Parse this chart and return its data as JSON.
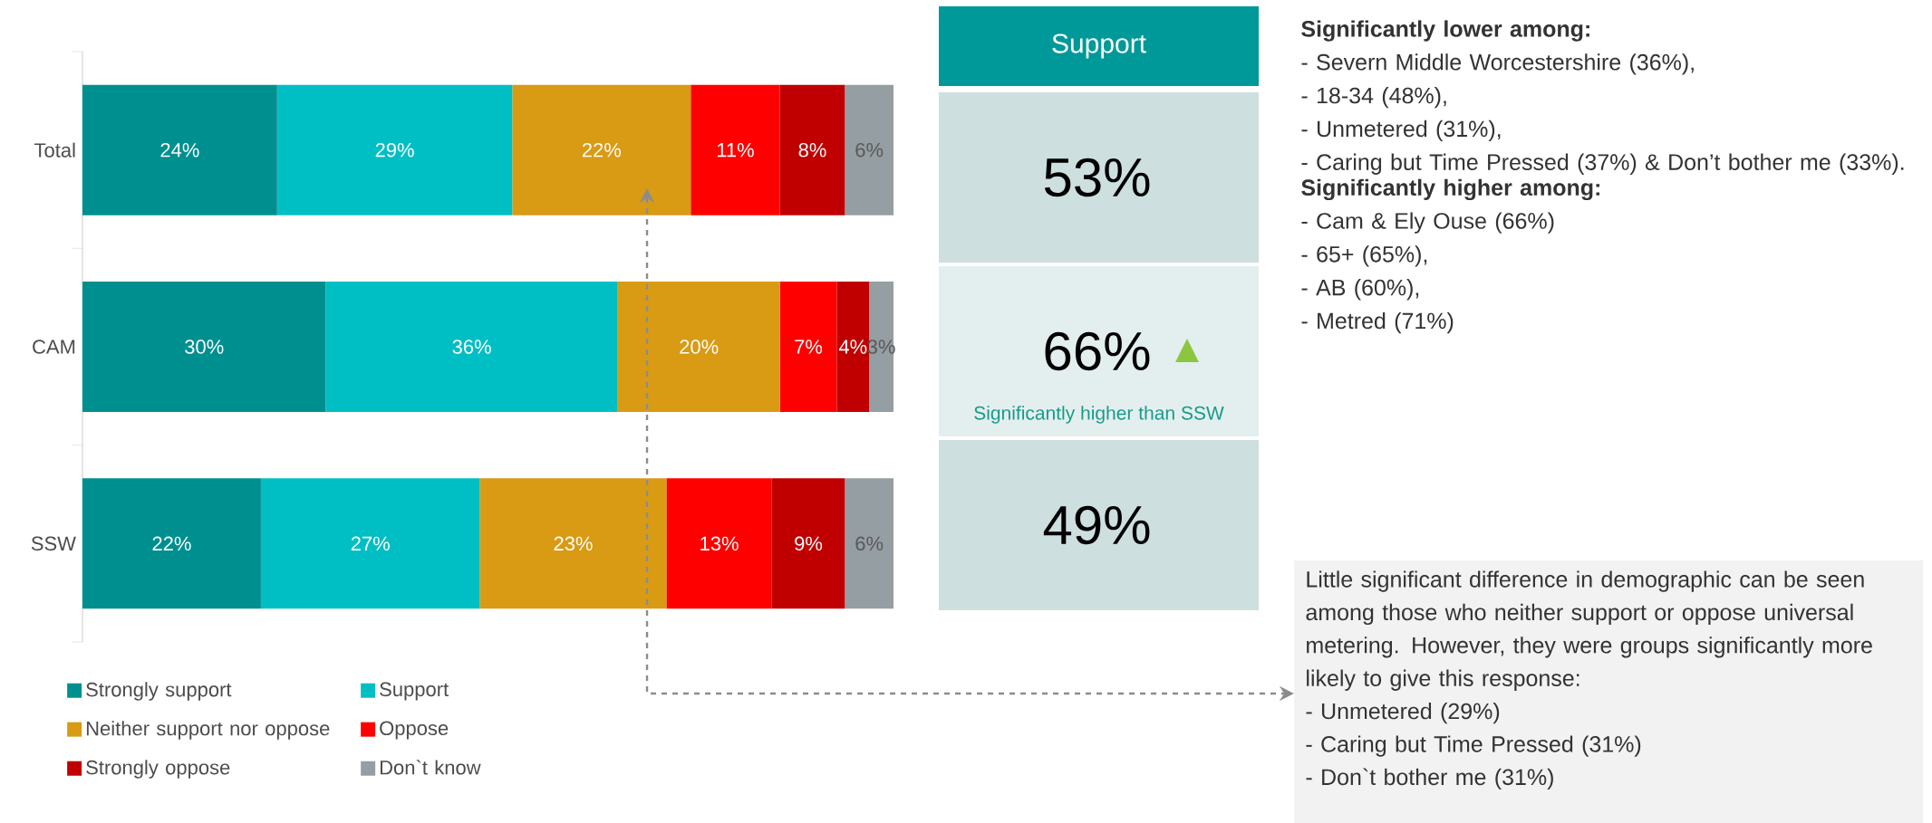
{
  "chart_data": [
    {
      "type": "bar",
      "orientation": "horizontal",
      "stacked": true,
      "categories": [
        "Total",
        "CAM",
        "SSW"
      ],
      "legend": "bottom",
      "series": [
        {
          "name": "Strongly support",
          "color": "#008f8f",
          "values": [
            24,
            30,
            22
          ],
          "value_labels": [
            "24%",
            "30%",
            "22%"
          ]
        },
        {
          "name": "Support",
          "color": "#00bfc4",
          "values": [
            29,
            36,
            27
          ],
          "value_labels": [
            "29%",
            "36%",
            "27%"
          ]
        },
        {
          "name": "Neither support nor oppose",
          "color": "#d99a14",
          "values": [
            22,
            20,
            23
          ],
          "value_labels": [
            "22%",
            "20%",
            "23%"
          ]
        },
        {
          "name": "Oppose",
          "color": "#ff0000",
          "values": [
            11,
            7,
            13
          ],
          "value_labels": [
            "11%",
            "7%",
            "13%"
          ]
        },
        {
          "name": "Strongly oppose",
          "color": "#c00000",
          "values": [
            8,
            4,
            9
          ],
          "value_labels": [
            "8%",
            "4%",
            "9%"
          ]
        },
        {
          "name": "Don`t know",
          "color": "#959ea3",
          "values": [
            6,
            3,
            6
          ],
          "value_labels": [
            "6%",
            "3%",
            "6%"
          ]
        }
      ]
    },
    {
      "type": "other",
      "title": "Support",
      "color": "#009999",
      "value_labels": [
        "53%",
        "66%",
        "49%"
      ],
      "annotations": [
        "Significantly higher than SSW"
      ]
    },
    {
      "type": "other",
      "title": "Significantly lower among:",
      "annotations": [
        "- Severn Middle Worcestershire (36%),",
        "- 18-34 (48%),",
        "- Unmetered (31%),",
        "- Caring but Time Pressed (37%) & Don’t bother me (33%)."
      ]
    },
    {
      "type": "other",
      "title": "Significantly higher among:",
      "annotations": [
        "- Cam & Ely Ouse (66%)",
        "- 65+ (65%),",
        "- AB (60%),",
        "- Metred (71%)"
      ]
    },
    {
      "type": "other",
      "annotations": [
        "Little significant difference in demographic can be seen among those who neither support or oppose universal metering. However, they were groups significantly more likely to give this response:",
        "- Unmetered (29%)",
        "- Caring but Time Pressed (31%)",
        "- Don`t bother me (31%)"
      ]
    }
  ]
}
